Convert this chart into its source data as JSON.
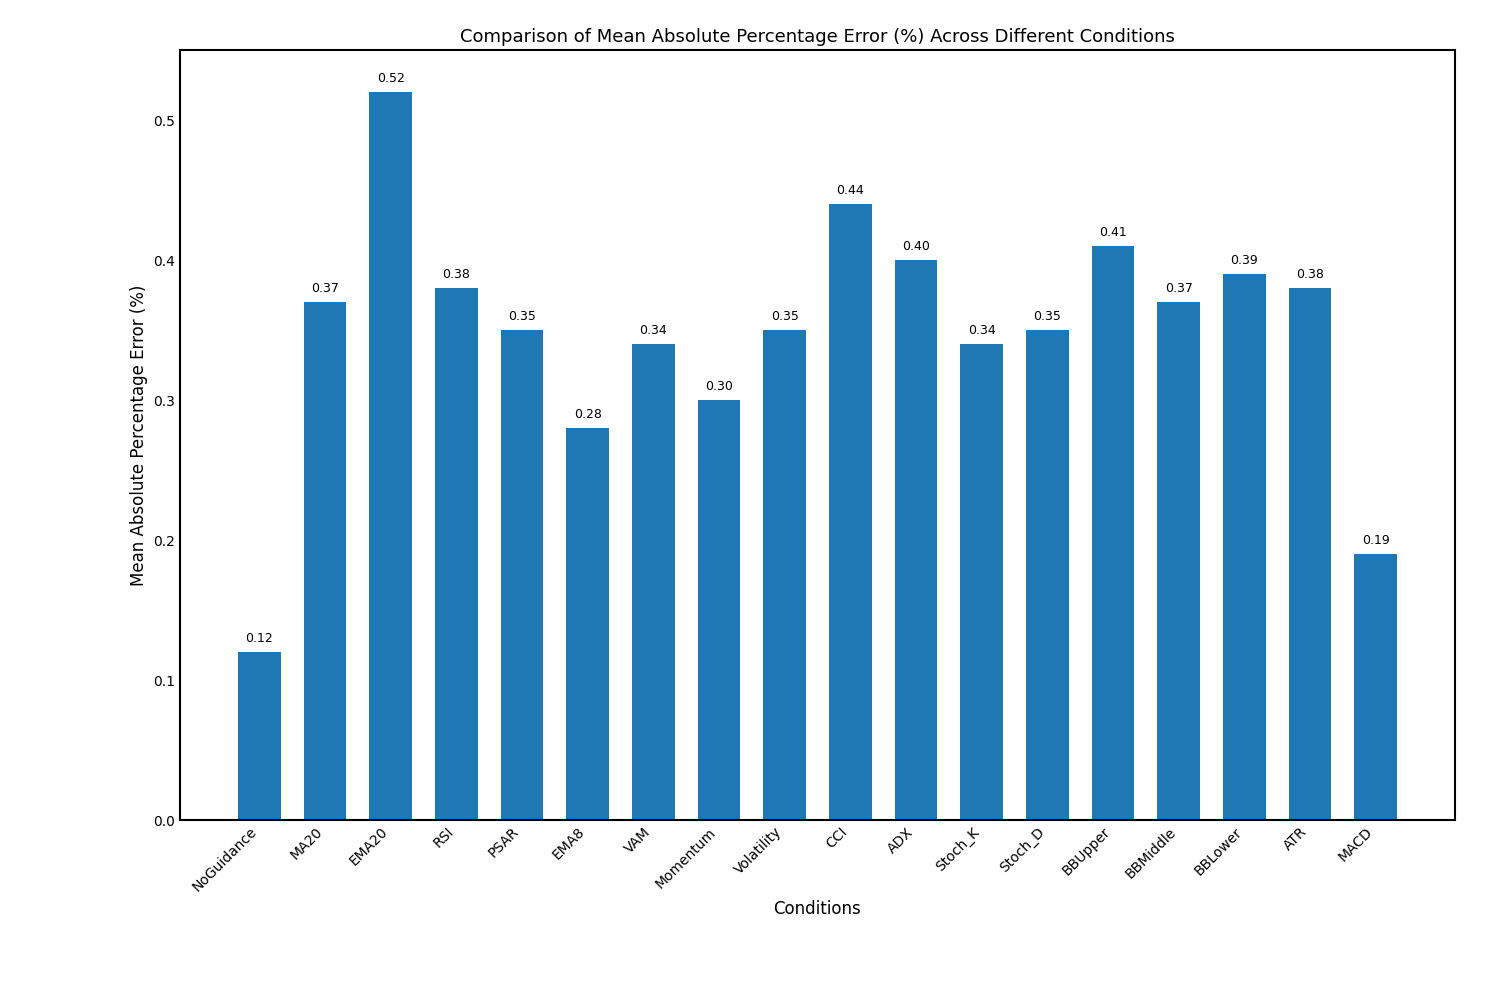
{
  "categories": [
    "NoGuidance",
    "MA20",
    "EMA20",
    "RSI",
    "PSAR",
    "EMA8",
    "VAM",
    "Momentum",
    "Volatility",
    "CCI",
    "ADX",
    "Stoch_K",
    "Stoch_D",
    "BBUpper",
    "BBMiddle",
    "BBLower",
    "ATR",
    "MACD"
  ],
  "values": [
    0.12,
    0.37,
    0.52,
    0.38,
    0.35,
    0.28,
    0.34,
    0.3,
    0.35,
    0.44,
    0.4,
    0.34,
    0.35,
    0.41,
    0.37,
    0.39,
    0.38,
    0.19
  ],
  "bar_color": "#1f77b4",
  "title": "Comparison of Mean Absolute Percentage Error (%) Across Different Conditions",
  "xlabel": "Conditions",
  "ylabel": "Mean Absolute Percentage Error (%)",
  "ylim": [
    0.0,
    0.55
  ],
  "yticks": [
    0.0,
    0.1,
    0.2,
    0.3,
    0.4,
    0.5
  ],
  "ytick_labels": [
    "0.0",
    "0.1",
    "0.2",
    "0.3",
    "0.4",
    "0.5"
  ],
  "title_fontsize": 13,
  "label_fontsize": 12,
  "tick_fontsize": 10,
  "annotation_fontsize": 9,
  "bar_width": 0.65,
  "background_color": "#ffffff"
}
